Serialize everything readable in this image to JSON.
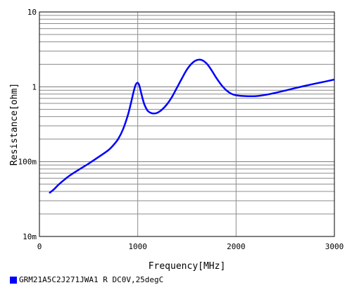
{
  "chart_data": {
    "type": "line",
    "x_scale": "linear",
    "y_scale": "log",
    "xlim": [
      0,
      3000
    ],
    "ylim": [
      0.01,
      10
    ],
    "xlabel": "Frequency[MHz]",
    "ylabel": "Resistance[ohm]",
    "x_ticks": [
      0,
      1000,
      2000,
      3000
    ],
    "x_tick_labels": [
      "0",
      "1000",
      "2000",
      "3000"
    ],
    "y_ticks": [
      0.01,
      0.1,
      1,
      10
    ],
    "y_tick_labels": [
      "10m",
      "100m",
      "1",
      "10"
    ],
    "grid": true,
    "legend_position": "bottom-left",
    "series": [
      {
        "name": "GRM21A5C2J271JWA1 R DC0V,25degC",
        "color": "#0000ff",
        "x": [
          100,
          150,
          200,
          300,
          400,
          500,
          600,
          700,
          750,
          800,
          850,
          900,
          930,
          960,
          980,
          1000,
          1015,
          1030,
          1050,
          1070,
          1100,
          1130,
          1160,
          1200,
          1250,
          1300,
          1350,
          1400,
          1450,
          1500,
          1550,
          1600,
          1650,
          1700,
          1750,
          1800,
          1850,
          1900,
          1950,
          2000,
          2100,
          2200,
          2300,
          2400,
          2500,
          2600,
          2700,
          2800,
          2900,
          3000
        ],
        "y": [
          0.038,
          0.043,
          0.05,
          0.064,
          0.078,
          0.094,
          0.115,
          0.142,
          0.165,
          0.2,
          0.27,
          0.42,
          0.6,
          0.88,
          1.07,
          1.13,
          1.05,
          0.88,
          0.69,
          0.57,
          0.48,
          0.45,
          0.44,
          0.45,
          0.5,
          0.59,
          0.74,
          0.98,
          1.3,
          1.7,
          2.05,
          2.27,
          2.28,
          2.05,
          1.67,
          1.31,
          1.06,
          0.9,
          0.81,
          0.77,
          0.75,
          0.75,
          0.78,
          0.83,
          0.89,
          0.96,
          1.03,
          1.1,
          1.17,
          1.25
        ]
      }
    ]
  }
}
